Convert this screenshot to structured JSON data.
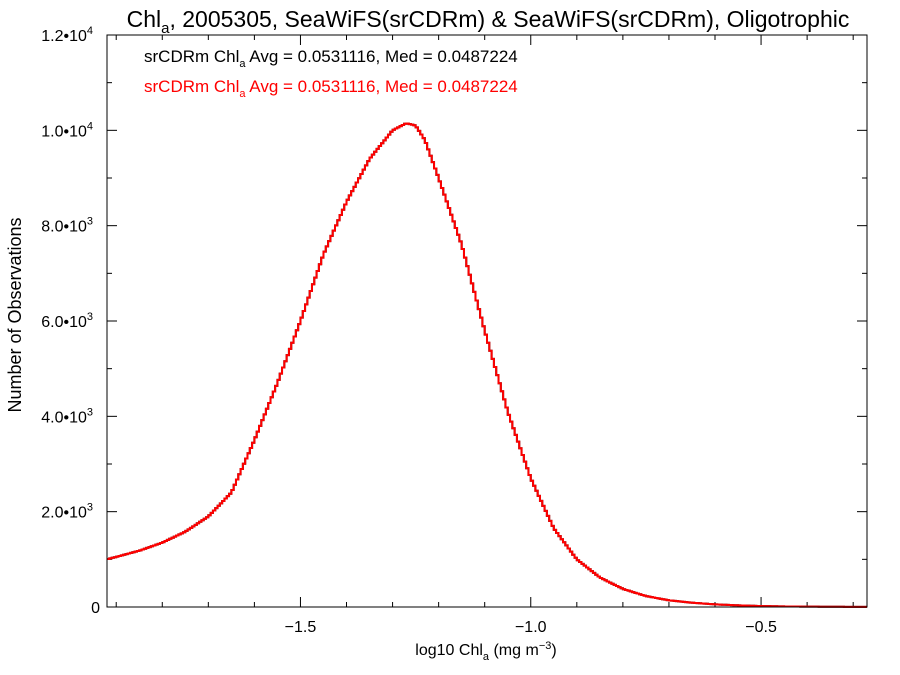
{
  "chart_data": {
    "type": "line",
    "title": {
      "prefix": "Chl",
      "sub": "a",
      "rest": ", 2005305, SeaWiFS(srCDRm) & SeaWiFS(srCDRm), Oligotrophic"
    },
    "xlabel": {
      "prefix": "log10 Chl",
      "sub": "a",
      "rest": " (mg m",
      "sup": "−3",
      "end": ")"
    },
    "ylabel": "Number of Observations",
    "xlim": [
      -1.92,
      -0.27
    ],
    "ylim": [
      0,
      12000
    ],
    "xticks": [
      {
        "value": -1.5,
        "label": "−1.5"
      },
      {
        "value": -1.0,
        "label": "−1.0"
      },
      {
        "value": -0.5,
        "label": "−0.5"
      }
    ],
    "yticks": [
      {
        "value": 0,
        "base": "0",
        "exp": ""
      },
      {
        "value": 2000,
        "base": "2.0•10",
        "exp": "3"
      },
      {
        "value": 4000,
        "base": "4.0•10",
        "exp": "3"
      },
      {
        "value": 6000,
        "base": "6.0•10",
        "exp": "3"
      },
      {
        "value": 8000,
        "base": "8.0•10",
        "exp": "3"
      },
      {
        "value": 10000,
        "base": "1.0•10",
        "exp": "4"
      },
      {
        "value": 12000,
        "base": "1.2•10",
        "exp": "4"
      }
    ],
    "grid": false,
    "legend_placement": "top-left",
    "annotations": [
      {
        "pre": "srCDRm Chl",
        "sub": "a",
        "post": " Avg = 0.0531116, Med = 0.0487224",
        "color": "#000000"
      },
      {
        "pre": "srCDRm Chl",
        "sub": "a",
        "post": " Avg = 0.0531116, Med = 0.0487224",
        "color": "#ff0000"
      }
    ],
    "series": [
      {
        "color": "#000000",
        "x": [
          -1.92,
          -1.85,
          -1.8,
          -1.75,
          -1.7,
          -1.65,
          -1.6,
          -1.55,
          -1.5,
          -1.45,
          -1.4,
          -1.35,
          -1.3,
          -1.27,
          -1.25,
          -1.23,
          -1.2,
          -1.15,
          -1.1,
          -1.05,
          -1.0,
          -0.95,
          -0.9,
          -0.85,
          -0.8,
          -0.75,
          -0.7,
          -0.65,
          -0.6,
          -0.55,
          -0.5,
          -0.45,
          -0.4,
          -0.35,
          -0.3,
          -0.27
        ],
        "values": [
          1000,
          1180,
          1350,
          1580,
          1900,
          2400,
          3500,
          4700,
          6000,
          7400,
          8500,
          9400,
          10000,
          10150,
          10100,
          9800,
          9000,
          7600,
          5800,
          4100,
          2700,
          1650,
          1000,
          620,
          380,
          230,
          140,
          90,
          55,
          35,
          20,
          12,
          8,
          5,
          3,
          2
        ]
      },
      {
        "color": "#ff0000",
        "x": [
          -1.92,
          -1.85,
          -1.8,
          -1.75,
          -1.7,
          -1.65,
          -1.6,
          -1.55,
          -1.5,
          -1.45,
          -1.4,
          -1.35,
          -1.3,
          -1.27,
          -1.25,
          -1.23,
          -1.2,
          -1.15,
          -1.1,
          -1.05,
          -1.0,
          -0.95,
          -0.9,
          -0.85,
          -0.8,
          -0.75,
          -0.7,
          -0.65,
          -0.6,
          -0.55,
          -0.5,
          -0.45,
          -0.4,
          -0.35,
          -0.3,
          -0.27
        ],
        "values": [
          1000,
          1180,
          1350,
          1580,
          1900,
          2400,
          3500,
          4700,
          6000,
          7400,
          8500,
          9400,
          10000,
          10150,
          10100,
          9800,
          9000,
          7600,
          5800,
          4100,
          2700,
          1650,
          1000,
          620,
          380,
          230,
          140,
          90,
          55,
          35,
          20,
          12,
          8,
          5,
          3,
          2
        ]
      }
    ]
  }
}
